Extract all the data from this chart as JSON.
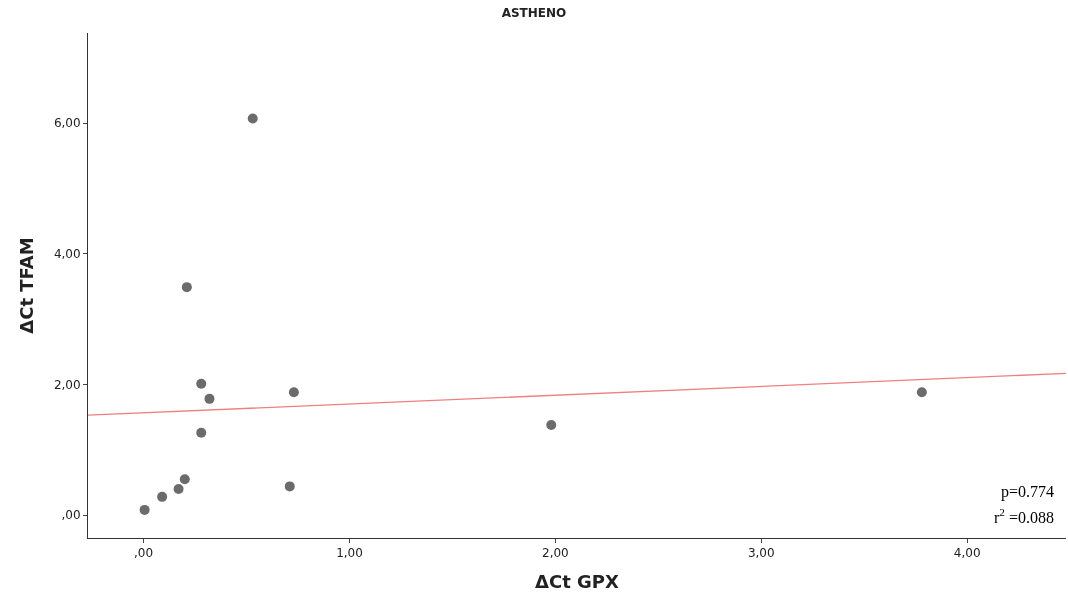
{
  "chart_data": {
    "type": "scatter",
    "title": "ASTHENO",
    "xlabel": "ΔCt GPX",
    "ylabel": "ΔCt TFAM",
    "xlim": [
      -0.27,
      4.48
    ],
    "ylim": [
      -0.35,
      7.38
    ],
    "xticks": [
      {
        "value": 0,
        "label": ",00"
      },
      {
        "value": 1,
        "label": "1,00"
      },
      {
        "value": 2,
        "label": "2,00"
      },
      {
        "value": 3,
        "label": "3,00"
      },
      {
        "value": 4,
        "label": "4,00"
      }
    ],
    "yticks": [
      {
        "value": 0,
        "label": ",00"
      },
      {
        "value": 2,
        "label": "2,00"
      },
      {
        "value": 4,
        "label": "4,00"
      },
      {
        "value": 6,
        "label": "6,00"
      }
    ],
    "series": [
      {
        "color": "#6b6b6b",
        "marker": "circle",
        "x": [
          0.005,
          0.09,
          0.17,
          0.2,
          0.21,
          0.28,
          0.28,
          0.32,
          0.53,
          0.71,
          0.73,
          1.98,
          3.78
        ],
        "values": [
          0.08,
          0.28,
          0.4,
          0.55,
          3.49,
          2.01,
          1.26,
          1.78,
          6.07,
          0.44,
          1.88,
          1.38,
          1.88
        ]
      },
      {
        "type": "line",
        "color": "#f08080",
        "line_style": "solid",
        "x": [
          -0.27,
          4.48
        ],
        "values": [
          1.53,
          2.17
        ]
      }
    ],
    "annotations": [
      {
        "text": "p=0.774"
      },
      {
        "text": "r$^{2}$ =0.088"
      }
    ]
  }
}
